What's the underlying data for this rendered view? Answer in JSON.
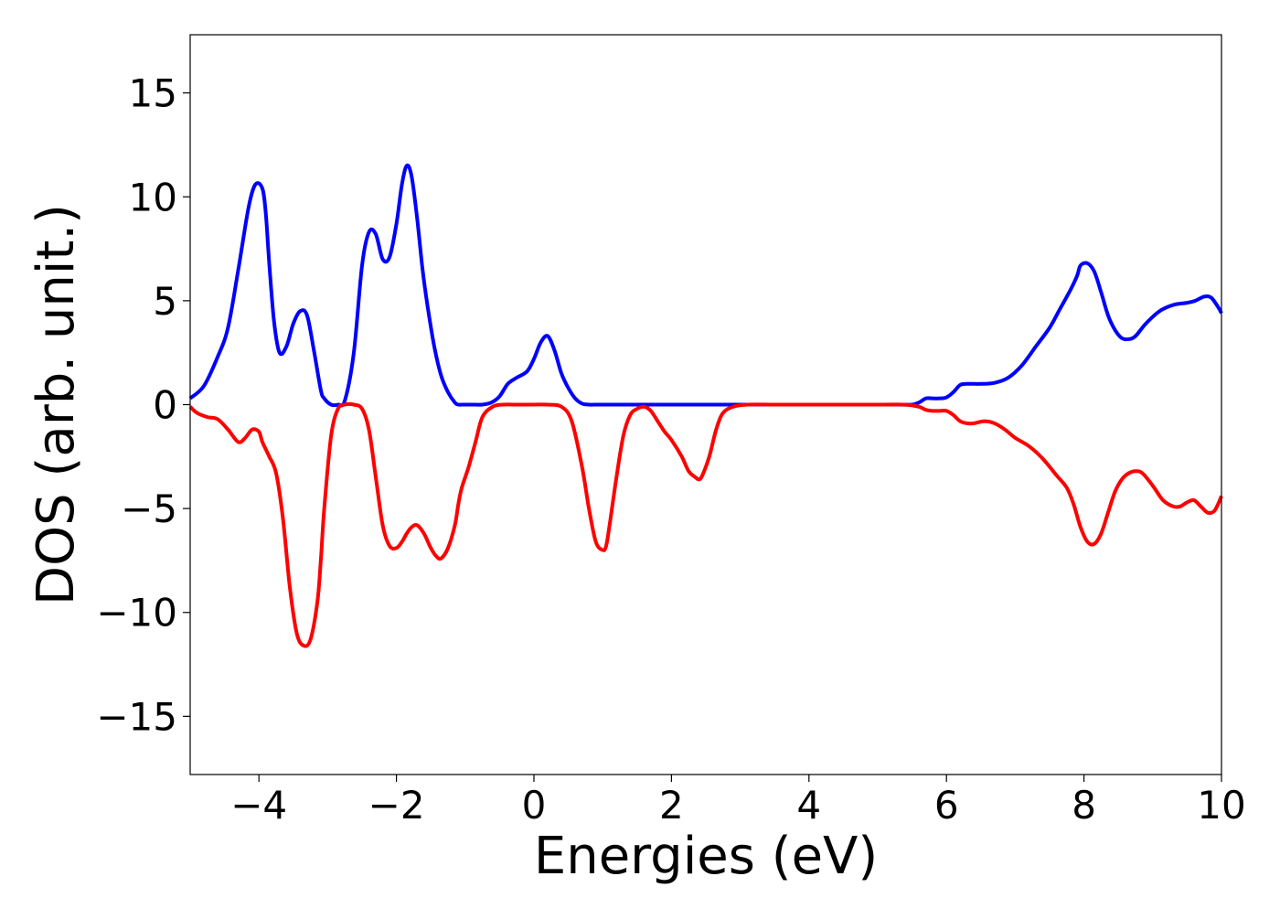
{
  "chart_data": {
    "type": "line",
    "title": "",
    "xlabel": "Energies (eV)",
    "ylabel": "DOS (arb. unit.)",
    "xlim": [
      -5,
      10
    ],
    "ylim": [
      -17.8,
      17.8
    ],
    "xticks": [
      -4,
      -2,
      0,
      2,
      4,
      6,
      8,
      10
    ],
    "xtick_labels": [
      "−4",
      "−2",
      "0",
      "2",
      "4",
      "6",
      "8",
      "10"
    ],
    "yticks": [
      15,
      10,
      5,
      0,
      -5,
      -10,
      -15
    ],
    "ytick_labels": [
      "15",
      "10",
      "5",
      "0",
      "−5",
      "−10",
      "−15"
    ],
    "grid": false,
    "legend": "none",
    "series": [
      {
        "color": "#0000ff",
        "x": [
          -5.0,
          -4.8,
          -4.6,
          -4.45,
          -4.3,
          -4.15,
          -4.05,
          -3.95,
          -3.9,
          -3.85,
          -3.78,
          -3.7,
          -3.6,
          -3.5,
          -3.4,
          -3.3,
          -3.2,
          -3.1,
          -3.05,
          -2.95,
          -2.85,
          -2.75,
          -2.62,
          -2.5,
          -2.4,
          -2.3,
          -2.2,
          -2.1,
          -2.0,
          -1.92,
          -1.85,
          -1.78,
          -1.7,
          -1.62,
          -1.55,
          -1.45,
          -1.35,
          -1.25,
          -1.15,
          -1.1,
          -1.05,
          -0.95,
          -0.85,
          -0.75,
          -0.62,
          -0.5,
          -0.38,
          -0.25,
          -0.1,
          0.0,
          0.1,
          0.2,
          0.3,
          0.4,
          0.5,
          0.6,
          0.7,
          0.8,
          0.9,
          0.95,
          1.05,
          1.15,
          1.2,
          1.28,
          1.38,
          1.48,
          1.58,
          1.7,
          1.85,
          2.0,
          2.5,
          3.0,
          4.0,
          5.0,
          5.3,
          5.5,
          5.6,
          5.7,
          5.8,
          5.9,
          6.0,
          6.1,
          6.2,
          6.3,
          6.5,
          6.7,
          6.9,
          7.1,
          7.3,
          7.5,
          7.65,
          7.8,
          7.9,
          7.95,
          8.05,
          8.15,
          8.25,
          8.35,
          8.45,
          8.55,
          8.65,
          8.75,
          8.9,
          9.1,
          9.3,
          9.5,
          9.62,
          9.75,
          9.85,
          9.95,
          10.0
        ],
        "y": [
          0.3,
          0.9,
          2.3,
          3.7,
          6.5,
          9.5,
          10.6,
          10.4,
          9.2,
          6.8,
          4.0,
          2.5,
          2.8,
          3.9,
          4.5,
          4.3,
          2.6,
          0.7,
          0.3,
          0.0,
          0.0,
          0.2,
          2.5,
          6.7,
          8.3,
          8.2,
          7.0,
          7.1,
          8.7,
          10.6,
          11.5,
          11.0,
          9.0,
          6.5,
          4.8,
          2.8,
          1.4,
          0.6,
          0.1,
          0.0,
          0.0,
          0.0,
          0.0,
          0.0,
          0.1,
          0.4,
          1.0,
          1.3,
          1.6,
          2.2,
          3.0,
          3.3,
          2.6,
          1.5,
          0.8,
          0.3,
          0.05,
          0.0,
          0.0,
          0.0,
          0.0,
          0.0,
          0.0,
          0.0,
          0.0,
          0.0,
          0.0,
          0.0,
          0.0,
          0.0,
          0.0,
          0.0,
          0.0,
          0.0,
          0.0,
          0.0,
          0.1,
          0.3,
          0.3,
          0.3,
          0.35,
          0.6,
          0.95,
          1.0,
          1.0,
          1.05,
          1.3,
          1.9,
          2.8,
          3.7,
          4.6,
          5.5,
          6.2,
          6.7,
          6.8,
          6.4,
          5.4,
          4.3,
          3.6,
          3.2,
          3.15,
          3.3,
          3.9,
          4.5,
          4.8,
          4.9,
          5.0,
          5.2,
          5.15,
          4.7,
          4.4
        ]
      },
      {
        "color": "#ff0000",
        "x": [
          -5.0,
          -4.9,
          -4.75,
          -4.6,
          -4.45,
          -4.3,
          -4.2,
          -4.1,
          -4.0,
          -3.95,
          -3.85,
          -3.75,
          -3.65,
          -3.55,
          -3.45,
          -3.35,
          -3.25,
          -3.15,
          -3.1,
          -3.05,
          -2.95,
          -2.85,
          -2.75,
          -2.62,
          -2.5,
          -2.4,
          -2.3,
          -2.2,
          -2.1,
          -2.0,
          -1.92,
          -1.85,
          -1.78,
          -1.7,
          -1.6,
          -1.5,
          -1.42,
          -1.35,
          -1.25,
          -1.15,
          -1.1,
          -1.05,
          -0.95,
          -0.85,
          -0.75,
          -0.6,
          -0.45,
          -0.3,
          -0.15,
          0.0,
          0.2,
          0.4,
          0.55,
          0.7,
          0.8,
          0.9,
          1.0,
          1.05,
          1.1,
          1.2,
          1.3,
          1.4,
          1.5,
          1.6,
          1.7,
          1.8,
          1.9,
          2.0,
          2.15,
          2.25,
          2.35,
          2.4,
          2.45,
          2.55,
          2.65,
          2.75,
          2.9,
          3.1,
          3.5,
          4.0,
          5.0,
          5.4,
          5.6,
          5.7,
          5.8,
          5.9,
          6.0,
          6.1,
          6.2,
          6.3,
          6.4,
          6.55,
          6.7,
          6.85,
          7.0,
          7.2,
          7.4,
          7.6,
          7.75,
          7.85,
          7.95,
          8.05,
          8.15,
          8.25,
          8.35,
          8.45,
          8.55,
          8.65,
          8.75,
          8.85,
          9.0,
          9.15,
          9.3,
          9.4,
          9.5,
          9.6,
          9.7,
          9.8,
          9.9,
          10.0
        ],
        "y": [
          -0.1,
          -0.4,
          -0.6,
          -0.7,
          -1.2,
          -1.8,
          -1.6,
          -1.2,
          -1.3,
          -1.8,
          -2.5,
          -3.3,
          -5.5,
          -8.8,
          -11.0,
          -11.6,
          -11.3,
          -9.5,
          -7.5,
          -5.0,
          -1.5,
          -0.2,
          0.0,
          0.0,
          -0.2,
          -1.2,
          -3.5,
          -5.8,
          -6.8,
          -6.9,
          -6.6,
          -6.2,
          -5.9,
          -5.8,
          -6.2,
          -6.9,
          -7.3,
          -7.4,
          -6.9,
          -5.8,
          -4.8,
          -4.0,
          -3.0,
          -1.8,
          -0.6,
          -0.1,
          0.0,
          0.0,
          0.0,
          0.0,
          0.0,
          -0.1,
          -0.8,
          -3.0,
          -5.0,
          -6.6,
          -7.0,
          -6.8,
          -5.8,
          -3.5,
          -1.5,
          -0.5,
          -0.2,
          -0.1,
          -0.3,
          -0.8,
          -1.3,
          -1.7,
          -2.5,
          -3.2,
          -3.5,
          -3.6,
          -3.4,
          -2.5,
          -1.2,
          -0.4,
          -0.1,
          0.0,
          0.0,
          0.0,
          0.0,
          0.0,
          -0.1,
          -0.25,
          -0.3,
          -0.3,
          -0.3,
          -0.5,
          -0.8,
          -0.9,
          -0.9,
          -0.8,
          -0.9,
          -1.2,
          -1.6,
          -2.0,
          -2.6,
          -3.4,
          -4.0,
          -4.8,
          -5.9,
          -6.6,
          -6.7,
          -6.2,
          -5.2,
          -4.2,
          -3.6,
          -3.3,
          -3.2,
          -3.3,
          -3.9,
          -4.6,
          -4.9,
          -4.9,
          -4.7,
          -4.6,
          -4.9,
          -5.2,
          -5.1,
          -4.4
        ]
      }
    ]
  }
}
